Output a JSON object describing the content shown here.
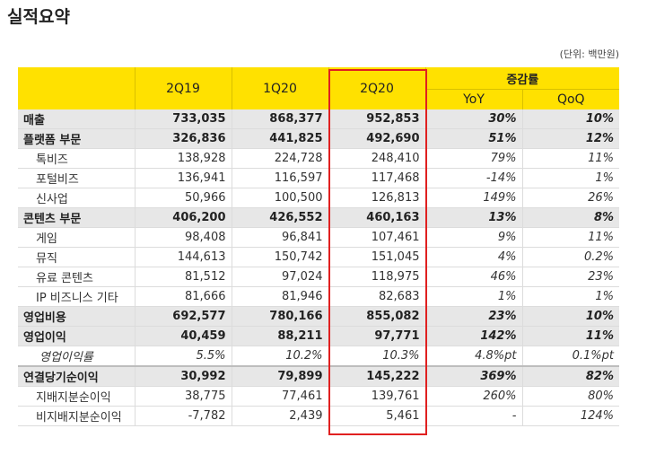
{
  "title": "실적요약",
  "unit": "(단위: 백만원)",
  "columns": {
    "q1": "2Q19",
    "q2": "1Q20",
    "q3": "2Q20",
    "group": "증감률",
    "yoy": "YoY",
    "qoq": "QoQ"
  },
  "rows": [
    {
      "label": "매출",
      "q1": "733,035",
      "q2": "868,377",
      "q3": "952,853",
      "yoy": "30%",
      "qoq": "10%"
    },
    {
      "label": "플랫폼 부문",
      "q1": "326,836",
      "q2": "441,825",
      "q3": "492,690",
      "yoy": "51%",
      "qoq": "12%"
    },
    {
      "label": "톡비즈",
      "q1": "138,928",
      "q2": "224,728",
      "q3": "248,410",
      "yoy": "79%",
      "qoq": "11%"
    },
    {
      "label": "포털비즈",
      "q1": "136,941",
      "q2": "116,597",
      "q3": "117,468",
      "yoy": "-14%",
      "qoq": "1%"
    },
    {
      "label": "신사업",
      "q1": "50,966",
      "q2": "100,500",
      "q3": "126,813",
      "yoy": "149%",
      "qoq": "26%"
    },
    {
      "label": "콘텐츠 부문",
      "q1": "406,200",
      "q2": "426,552",
      "q3": "460,163",
      "yoy": "13%",
      "qoq": "8%"
    },
    {
      "label": "게임",
      "q1": "98,408",
      "q2": "96,841",
      "q3": "107,461",
      "yoy": "9%",
      "qoq": "11%"
    },
    {
      "label": "뮤직",
      "q1": "144,613",
      "q2": "150,742",
      "q3": "151,045",
      "yoy": "4%",
      "qoq": "0.2%"
    },
    {
      "label": "유료 콘텐츠",
      "q1": "81,512",
      "q2": "97,024",
      "q3": "118,975",
      "yoy": "46%",
      "qoq": "23%"
    },
    {
      "label": "IP 비즈니스 기타",
      "q1": "81,666",
      "q2": "81,946",
      "q3": "82,683",
      "yoy": "1%",
      "qoq": "1%"
    },
    {
      "label": "영업비용",
      "q1": "692,577",
      "q2": "780,166",
      "q3": "855,082",
      "yoy": "23%",
      "qoq": "10%"
    },
    {
      "label": "영업이익",
      "q1": "40,459",
      "q2": "88,211",
      "q3": "97,771",
      "yoy": "142%",
      "qoq": "11%"
    },
    {
      "label": "영업이익률",
      "q1": "5.5%",
      "q2": "10.2%",
      "q3": "10.3%",
      "yoy": "4.8%pt",
      "qoq": "0.1%pt"
    },
    {
      "label": "연결당기순이익",
      "q1": "30,992",
      "q2": "79,899",
      "q3": "145,222",
      "yoy": "369%",
      "qoq": "82%"
    },
    {
      "label": "지배지분순이익",
      "q1": "38,775",
      "q2": "77,461",
      "q3": "139,761",
      "yoy": "260%",
      "qoq": "80%"
    },
    {
      "label": "비지배지분순이익",
      "q1": "-7,782",
      "q2": "2,439",
      "q3": "5,461",
      "yoy": "-",
      "qoq": "124%"
    }
  ]
}
